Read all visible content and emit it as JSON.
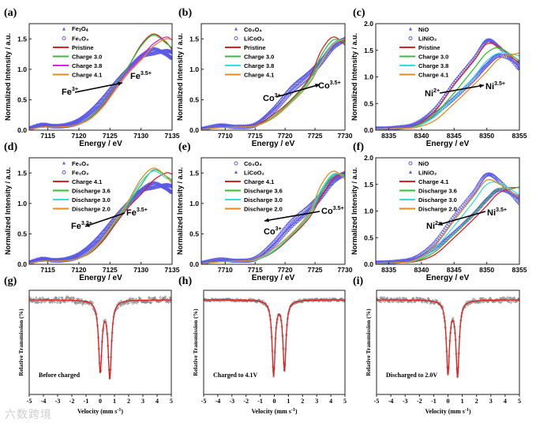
{
  "watermark": "六数跨境",
  "chart_data": [
    {
      "id": "a",
      "panel_label": "(a)",
      "type": "line",
      "xlabel": "Energy / eV",
      "ylabel": "Normalized Intensity / a.u.",
      "xlim": [
        7112,
        7135
      ],
      "ylim": [
        0,
        1.75
      ],
      "xticks": [
        7115,
        7120,
        7125,
        7130,
        7135
      ],
      "yticks": [
        0.0,
        0.5,
        1.0,
        1.5
      ],
      "legend": "top-left",
      "x": [
        7112,
        7114,
        7116,
        7118,
        7120,
        7122,
        7124,
        7126,
        7128,
        7130,
        7132,
        7134,
        7135
      ],
      "series": [
        {
          "name": "Fe3O4",
          "label_html": "Fe<sub>3</sub>O<sub>4</sub>",
          "marker": "triangle",
          "color": "#5a5ae6",
          "values": [
            0.03,
            0.09,
            0.07,
            0.09,
            0.17,
            0.33,
            0.55,
            0.8,
            1.02,
            1.22,
            1.33,
            1.25,
            1.18
          ]
        },
        {
          "name": "Fe2O3",
          "marker": "circle",
          "color": "#5a5ae6",
          "values": [
            0.02,
            0.08,
            0.06,
            0.07,
            0.12,
            0.25,
            0.45,
            0.72,
            0.98,
            1.2,
            1.26,
            1.3,
            1.28
          ]
        },
        {
          "name": "Pristine",
          "color": "#e02020",
          "values": [
            0.01,
            0.05,
            0.05,
            0.06,
            0.1,
            0.22,
            0.45,
            0.75,
            1.05,
            1.4,
            1.58,
            1.45,
            1.32
          ]
        },
        {
          "name": "Charge 3.0",
          "color": "#30c030",
          "values": [
            0.01,
            0.05,
            0.05,
            0.06,
            0.1,
            0.22,
            0.45,
            0.75,
            1.05,
            1.38,
            1.56,
            1.43,
            1.35
          ]
        },
        {
          "name": "Charge 3.8",
          "color": "#e020e0",
          "values": [
            0.01,
            0.05,
            0.05,
            0.06,
            0.1,
            0.2,
            0.42,
            0.72,
            0.98,
            1.2,
            1.42,
            1.53,
            1.48
          ]
        },
        {
          "name": "Charge 4.1",
          "color": "#e88a20",
          "values": [
            0.01,
            0.05,
            0.05,
            0.06,
            0.1,
            0.2,
            0.4,
            0.68,
            0.94,
            1.15,
            1.38,
            1.5,
            1.48
          ]
        }
      ],
      "annotations": [
        {
          "text": "Fe",
          "sup": "3+"
        },
        {
          "text": "Fe",
          "sup": "3.5+"
        }
      ]
    },
    {
      "id": "b",
      "panel_label": "(b)",
      "type": "line",
      "xlabel": "Energy / eV",
      "ylabel": "Normalized Intensity / a.u.",
      "xlim": [
        7706,
        7730
      ],
      "ylim": [
        0,
        1.75
      ],
      "xticks": [
        7710,
        7715,
        7720,
        7725,
        7730
      ],
      "yticks": [
        0.0,
        0.5,
        1.0,
        1.5
      ],
      "legend": "top-left",
      "x": [
        7706,
        7709,
        7712,
        7715,
        7718,
        7721,
        7724,
        7726,
        7728,
        7730
      ],
      "series": [
        {
          "name": "Co3O4",
          "marker": "triangle",
          "color": "#5a5ae6",
          "values": [
            0.02,
            0.08,
            0.06,
            0.1,
            0.35,
            0.7,
            0.95,
            1.15,
            1.4,
            1.5
          ]
        },
        {
          "name": "LiCoO2",
          "marker": "circle",
          "color": "#5a5ae6",
          "values": [
            0.01,
            0.07,
            0.05,
            0.08,
            0.3,
            0.62,
            0.88,
            1.1,
            1.35,
            1.48
          ]
        },
        {
          "name": "Pristine",
          "color": "#e02020",
          "values": [
            0.01,
            0.04,
            0.05,
            0.08,
            0.25,
            0.5,
            0.85,
            1.3,
            1.53,
            1.4
          ]
        },
        {
          "name": "Charge 3.0",
          "color": "#30c030",
          "values": [
            0.01,
            0.04,
            0.05,
            0.07,
            0.22,
            0.48,
            0.82,
            1.22,
            1.48,
            1.45
          ]
        },
        {
          "name": "Charge 3.8",
          "color": "#30e0e0",
          "values": [
            0.01,
            0.04,
            0.05,
            0.07,
            0.2,
            0.46,
            0.78,
            1.12,
            1.42,
            1.5
          ]
        },
        {
          "name": "Charge 4.1",
          "color": "#e88a20",
          "values": [
            0.01,
            0.04,
            0.05,
            0.07,
            0.2,
            0.45,
            0.76,
            1.1,
            1.4,
            1.5
          ]
        }
      ],
      "annotations": [
        {
          "text": "Co",
          "sup": "3+"
        },
        {
          "text": "Co",
          "sup": "3.5+"
        }
      ]
    },
    {
      "id": "c",
      "panel_label": "(c)",
      "type": "line",
      "xlabel": "Energy / eV",
      "ylabel": "Normalized Intensity / a.u.",
      "xlim": [
        8333,
        8355
      ],
      "ylim": [
        0,
        2.0
      ],
      "xticks": [
        8335,
        8340,
        8345,
        8350,
        8355
      ],
      "yticks": [
        0.0,
        0.5,
        1.0,
        1.5,
        2.0
      ],
      "legend": "top-left",
      "x": [
        8333,
        8336,
        8339,
        8342,
        8345,
        8348,
        8350,
        8352,
        8355
      ],
      "series": [
        {
          "name": "NiO",
          "marker": "triangle",
          "color": "#5a5ae6",
          "values": [
            0.03,
            0.05,
            0.12,
            0.4,
            0.9,
            1.35,
            1.68,
            1.55,
            1.15
          ]
        },
        {
          "name": "LiNiO2",
          "marker": "circle",
          "color": "#5a5ae6",
          "values": [
            0.03,
            0.04,
            0.1,
            0.3,
            0.6,
            0.95,
            1.22,
            1.4,
            1.25
          ]
        },
        {
          "name": "Pristine",
          "color": "#e02020",
          "values": [
            0.02,
            0.03,
            0.08,
            0.35,
            0.85,
            1.3,
            1.62,
            1.55,
            1.25
          ]
        },
        {
          "name": "Charge 3.0",
          "color": "#30c030",
          "values": [
            0.02,
            0.03,
            0.07,
            0.3,
            0.7,
            1.15,
            1.45,
            1.54,
            1.3
          ]
        },
        {
          "name": "Charge 3.8",
          "color": "#30e0e0",
          "values": [
            0.02,
            0.03,
            0.06,
            0.25,
            0.6,
            1.0,
            1.3,
            1.45,
            1.4
          ]
        },
        {
          "name": "Charge 4.1",
          "color": "#e88a20",
          "values": [
            0.02,
            0.03,
            0.05,
            0.18,
            0.5,
            0.85,
            1.1,
            1.35,
            1.45
          ]
        }
      ],
      "annotations": [
        {
          "text": "Ni",
          "sup": "2+"
        },
        {
          "text": "Ni",
          "sup": "3.5+"
        }
      ]
    },
    {
      "id": "d",
      "panel_label": "(d)",
      "type": "line",
      "xlabel": "Energy / eV",
      "ylabel": "Normalized Intensity / a.u.",
      "xlim": [
        7112,
        7135
      ],
      "ylim": [
        0,
        1.75
      ],
      "xticks": [
        7115,
        7120,
        7125,
        7130,
        7135
      ],
      "yticks": [
        0.0,
        0.5,
        1.0,
        1.5
      ],
      "legend": "top-left",
      "x": [
        7112,
        7114,
        7116,
        7118,
        7120,
        7122,
        7124,
        7126,
        7128,
        7130,
        7132,
        7134,
        7135
      ],
      "series": [
        {
          "name": "Fe3O4",
          "marker": "triangle",
          "color": "#5a5ae6",
          "values": [
            0.03,
            0.09,
            0.07,
            0.09,
            0.17,
            0.33,
            0.55,
            0.8,
            1.02,
            1.22,
            1.33,
            1.25,
            1.18
          ]
        },
        {
          "name": "Fe2O3",
          "marker": "circle",
          "color": "#5a5ae6",
          "values": [
            0.02,
            0.08,
            0.06,
            0.07,
            0.12,
            0.25,
            0.45,
            0.72,
            0.98,
            1.2,
            1.26,
            1.3,
            1.28
          ]
        },
        {
          "name": "Charge 4.1",
          "color": "#e02020",
          "values": [
            0.01,
            0.05,
            0.05,
            0.06,
            0.1,
            0.2,
            0.4,
            0.68,
            0.94,
            1.15,
            1.38,
            1.5,
            1.48
          ]
        },
        {
          "name": "Discharge 3.6",
          "color": "#30c030",
          "values": [
            0.01,
            0.05,
            0.05,
            0.06,
            0.1,
            0.21,
            0.43,
            0.72,
            1.0,
            1.3,
            1.55,
            1.45,
            1.38
          ]
        },
        {
          "name": "Discharge 3.0",
          "color": "#30e0e0",
          "values": [
            0.01,
            0.05,
            0.05,
            0.06,
            0.1,
            0.22,
            0.44,
            0.74,
            1.03,
            1.35,
            1.53,
            1.42,
            1.36
          ]
        },
        {
          "name": "Discharge 2.0",
          "color": "#e88a20",
          "values": [
            0.01,
            0.05,
            0.05,
            0.06,
            0.1,
            0.22,
            0.45,
            0.75,
            1.05,
            1.4,
            1.58,
            1.45,
            1.32
          ]
        }
      ],
      "annotations": [
        {
          "text": "Fe",
          "sup": "3.2+"
        },
        {
          "text": "Fe",
          "sup": "3.5+"
        }
      ]
    },
    {
      "id": "e",
      "panel_label": "(e)",
      "type": "line",
      "xlabel": "Energy / eV",
      "ylabel": "Normalized Intensity / a.u.",
      "xlim": [
        7706,
        7730
      ],
      "ylim": [
        0,
        1.75
      ],
      "xticks": [
        7710,
        7715,
        7720,
        7725,
        7730
      ],
      "yticks": [
        0.0,
        0.5,
        1.0,
        1.5
      ],
      "legend": "top-left",
      "x": [
        7706,
        7709,
        7712,
        7715,
        7718,
        7721,
        7724,
        7726,
        7728,
        7730
      ],
      "series": [
        {
          "name": "Co3O4",
          "marker": "circle",
          "color": "#5a5ae6",
          "values": [
            0.02,
            0.08,
            0.06,
            0.1,
            0.35,
            0.7,
            0.95,
            1.15,
            1.4,
            1.5
          ]
        },
        {
          "name": "LiCoO2",
          "marker": "triangle",
          "color": "#5a5ae6",
          "values": [
            0.01,
            0.07,
            0.05,
            0.08,
            0.3,
            0.62,
            0.88,
            1.1,
            1.35,
            1.48
          ]
        },
        {
          "name": "Charge 4.1",
          "color": "#e02020",
          "values": [
            0.01,
            0.04,
            0.05,
            0.07,
            0.2,
            0.45,
            0.76,
            1.1,
            1.4,
            1.5
          ]
        },
        {
          "name": "Discharge 3.6",
          "color": "#30c030",
          "values": [
            0.01,
            0.04,
            0.05,
            0.07,
            0.21,
            0.47,
            0.8,
            1.18,
            1.46,
            1.47
          ]
        },
        {
          "name": "Discharge 3.0",
          "color": "#30e0e0",
          "values": [
            0.01,
            0.04,
            0.05,
            0.07,
            0.22,
            0.48,
            0.82,
            1.22,
            1.48,
            1.45
          ]
        },
        {
          "name": "Discharge 2.0",
          "color": "#e88a20",
          "values": [
            0.01,
            0.04,
            0.05,
            0.08,
            0.25,
            0.5,
            0.85,
            1.3,
            1.53,
            1.4
          ]
        }
      ],
      "annotations": [
        {
          "text": "Co",
          "sup": "3+"
        },
        {
          "text": "Co",
          "sup": "3.5+"
        }
      ]
    },
    {
      "id": "f",
      "panel_label": "(f)",
      "type": "line",
      "xlabel": "Energy / eV",
      "ylabel": "Normalized Intensity / a.u.",
      "xlim": [
        8333,
        8355
      ],
      "ylim": [
        0,
        2.0
      ],
      "xticks": [
        8335,
        8340,
        8345,
        8350,
        8355
      ],
      "yticks": [
        0.0,
        0.5,
        1.0,
        1.5,
        2.0
      ],
      "legend": "top-left",
      "x": [
        8333,
        8336,
        8339,
        8342,
        8345,
        8348,
        8350,
        8352,
        8355
      ],
      "series": [
        {
          "name": "NiO",
          "marker": "circle",
          "color": "#5a5ae6",
          "values": [
            0.03,
            0.05,
            0.12,
            0.4,
            0.9,
            1.35,
            1.68,
            1.55,
            1.15
          ]
        },
        {
          "name": "LiNiO2",
          "marker": "triangle",
          "color": "#5a5ae6",
          "values": [
            0.03,
            0.04,
            0.1,
            0.3,
            0.6,
            0.95,
            1.22,
            1.4,
            1.25
          ]
        },
        {
          "name": "Charge 4.1",
          "color": "#e02020",
          "values": [
            0.02,
            0.03,
            0.05,
            0.18,
            0.5,
            0.85,
            1.1,
            1.35,
            1.45
          ]
        },
        {
          "name": "Discharge 3.6",
          "color": "#30c030",
          "values": [
            0.02,
            0.03,
            0.06,
            0.23,
            0.57,
            0.95,
            1.22,
            1.42,
            1.44
          ]
        },
        {
          "name": "Discharge 3.0",
          "color": "#30e0e0",
          "values": [
            0.02,
            0.03,
            0.07,
            0.3,
            0.72,
            1.18,
            1.5,
            1.52,
            1.3
          ]
        },
        {
          "name": "Discharge 2.0",
          "color": "#e88a20",
          "values": [
            0.02,
            0.03,
            0.08,
            0.34,
            0.82,
            1.28,
            1.58,
            1.5,
            1.25
          ]
        }
      ],
      "annotations": [
        {
          "text": "Ni",
          "sup": "2+"
        },
        {
          "text": "Ni",
          "sup": "3.5+"
        }
      ]
    },
    {
      "id": "g",
      "panel_label": "(g)",
      "type": "scatter",
      "xlabel": "Velocity (mm s",
      "xlabel_sup": "-1",
      "xlabel_end": ")",
      "ylabel": "Relative Transmission (%)",
      "xlim": [
        -5,
        5
      ],
      "xticks": [
        -5,
        -4,
        -3,
        -2,
        -1,
        0,
        1,
        2,
        3,
        4,
        5
      ],
      "note": "Before charged",
      "doublet": {
        "centers": [
          0.0,
          0.67
        ],
        "depths": [
          0.83,
          0.9
        ],
        "width": 0.28
      },
      "noise": 0.05
    },
    {
      "id": "h",
      "panel_label": "(h)",
      "type": "scatter",
      "xlabel": "Velocity (mm s",
      "xlabel_sup": "-1",
      "xlabel_end": ")",
      "ylabel": "Relative Transmission (%)",
      "xlim": [
        -5,
        5
      ],
      "xticks": [
        -5,
        -4,
        -3,
        -2,
        -1,
        0,
        1,
        2,
        3,
        4,
        5
      ],
      "note": "Charged to 4.1V",
      "doublet": {
        "centers": [
          -0.05,
          0.72
        ],
        "depths": [
          0.88,
          0.82
        ],
        "width": 0.26
      },
      "noise": 0.02
    },
    {
      "id": "i",
      "panel_label": "(i)",
      "type": "scatter",
      "xlabel": "Velocity (mm s",
      "xlabel_sup": "-1",
      "xlabel_end": ")",
      "ylabel": "Relative Transmission (%)",
      "xlim": [
        -5,
        5
      ],
      "xticks": [
        -5,
        -4,
        -3,
        -2,
        -1,
        0,
        1,
        2,
        3,
        4,
        5
      ],
      "note": "Discharged to 2.0V",
      "doublet": {
        "centers": [
          0.0,
          0.67
        ],
        "depths": [
          0.85,
          0.88
        ],
        "width": 0.27
      },
      "noise": 0.04
    }
  ]
}
